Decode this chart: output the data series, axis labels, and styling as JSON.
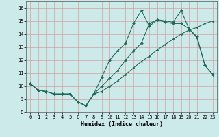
{
  "xlabel": "Humidex (Indice chaleur)",
  "xlim": [
    -0.5,
    23.5
  ],
  "ylim": [
    8,
    16.5
  ],
  "yticks": [
    8,
    9,
    10,
    11,
    12,
    13,
    14,
    15,
    16
  ],
  "xticks": [
    0,
    1,
    2,
    3,
    4,
    5,
    6,
    7,
    8,
    9,
    10,
    11,
    12,
    13,
    14,
    15,
    16,
    17,
    18,
    19,
    20,
    21,
    22,
    23
  ],
  "bg_color": "#cdeaea",
  "grid_color": "#b8d4d4",
  "line_color": "#1a6b5a",
  "line1_x": [
    0,
    1,
    2,
    3,
    4,
    5,
    6,
    7,
    8,
    9,
    10,
    11,
    12,
    13,
    14,
    15,
    16,
    17,
    18,
    19,
    20,
    21,
    22,
    23
  ],
  "line1_y": [
    10.2,
    9.7,
    9.6,
    9.4,
    9.4,
    9.4,
    8.8,
    8.5,
    9.4,
    10.7,
    12.0,
    12.7,
    13.3,
    14.8,
    15.8,
    14.6,
    15.1,
    15.0,
    14.9,
    15.8,
    14.4,
    13.8,
    11.6,
    10.9
  ],
  "line2_x": [
    0,
    1,
    2,
    3,
    4,
    5,
    6,
    7,
    8,
    9,
    10,
    11,
    12,
    13,
    14,
    15,
    16,
    17,
    18,
    19,
    20,
    21,
    22,
    23
  ],
  "line2_y": [
    10.2,
    9.7,
    9.6,
    9.4,
    9.4,
    9.4,
    8.8,
    8.5,
    9.4,
    9.6,
    10.0,
    10.4,
    10.9,
    11.4,
    11.9,
    12.3,
    12.8,
    13.2,
    13.6,
    14.0,
    14.3,
    14.5,
    14.8,
    15.0
  ],
  "line3_x": [
    0,
    1,
    2,
    3,
    4,
    5,
    6,
    7,
    8,
    9,
    10,
    11,
    12,
    13,
    14,
    15,
    16,
    17,
    18,
    19,
    20,
    21,
    22,
    23
  ],
  "line3_y": [
    10.2,
    9.7,
    9.6,
    9.4,
    9.4,
    9.4,
    8.8,
    8.5,
    9.4,
    10.0,
    10.6,
    11.2,
    12.0,
    12.7,
    13.3,
    14.8,
    15.1,
    14.9,
    14.8,
    14.8,
    14.4,
    13.7,
    11.6,
    10.9
  ]
}
